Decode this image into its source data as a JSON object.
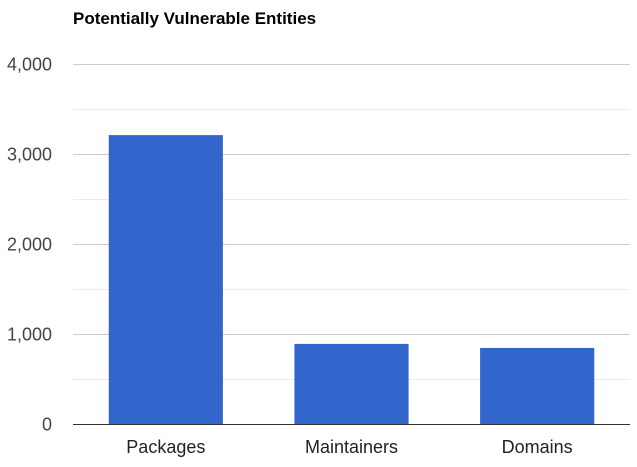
{
  "chart_data": {
    "type": "bar",
    "title": "Potentially Vulnerable Entities",
    "categories": [
      "Packages",
      "Maintainers",
      "Domains"
    ],
    "values": [
      3210,
      890,
      845
    ],
    "ylim": [
      0,
      4000
    ],
    "y_ticks": [
      0,
      1000,
      2000,
      3000,
      4000
    ],
    "y_tick_labels": [
      "0",
      "1,000",
      "2,000",
      "3,000",
      "4,000"
    ],
    "grid": true,
    "legend": "none",
    "colors": {
      "bar": "#3366cc",
      "major_grid": "#cccccc",
      "minor_grid": "#ebebeb",
      "baseline": "#333333"
    }
  }
}
